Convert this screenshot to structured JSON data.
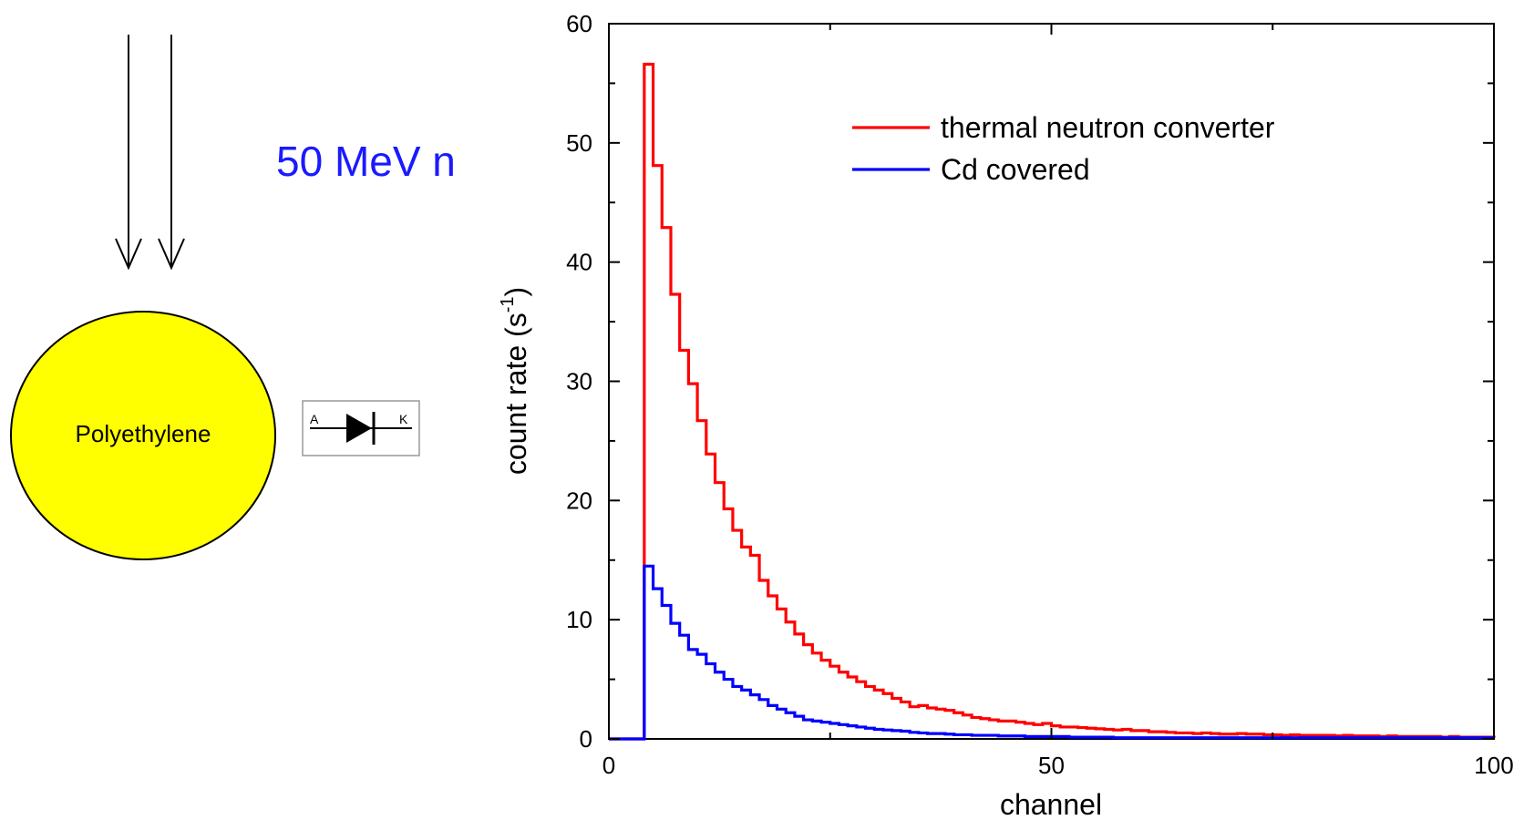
{
  "schematic": {
    "beam_label": "50 MeV n",
    "sphere_label": "Polyethylene",
    "diode_anode": "A",
    "diode_cathode": "K",
    "colors": {
      "sphere_fill": "#ffff00",
      "beam_label": "#1a1aff"
    },
    "icons": [
      "arrow-down-icon",
      "arrow-down-icon",
      "diode-icon"
    ]
  },
  "chart_data": {
    "type": "line",
    "step": true,
    "xlabel": "channel",
    "ylabel": "count rate (s",
    "ylabel_sup": "-1",
    "ylabel_close": ")",
    "xlim": [
      0,
      100
    ],
    "ylim": [
      0,
      60
    ],
    "xticks": [
      0,
      50,
      100
    ],
    "yticks": [
      0,
      10,
      20,
      30,
      40,
      50,
      60
    ],
    "legend_position": "top-right",
    "grid": false,
    "series": [
      {
        "name": "thermal neutron converter",
        "color": "#ff0000",
        "x": [
          0,
          1,
          2,
          3,
          4,
          5,
          6,
          7,
          8,
          9,
          10,
          11,
          12,
          13,
          14,
          15,
          16,
          17,
          18,
          19,
          20,
          21,
          22,
          23,
          24,
          25,
          26,
          27,
          28,
          29,
          30,
          31,
          32,
          33,
          34,
          35,
          36,
          37,
          38,
          39,
          40,
          41,
          42,
          43,
          44,
          45,
          46,
          47,
          48,
          49,
          50,
          51,
          52,
          53,
          54,
          55,
          56,
          57,
          58,
          59,
          60,
          61,
          62,
          63,
          64,
          65,
          66,
          67,
          68,
          69,
          70,
          71,
          72,
          73,
          74,
          75,
          76,
          77,
          78,
          79,
          80,
          81,
          82,
          83,
          84,
          85,
          86,
          87,
          88,
          89,
          90,
          91,
          92,
          93,
          94,
          95,
          96,
          97,
          98,
          99,
          100
        ],
        "y": [
          0,
          0,
          0,
          0,
          56.6,
          48.1,
          42.9,
          37.3,
          32.6,
          29.8,
          26.7,
          23.9,
          21.5,
          19.3,
          17.5,
          16.1,
          15.4,
          13.3,
          12.0,
          10.9,
          9.8,
          8.8,
          7.9,
          7.2,
          6.6,
          6.1,
          5.6,
          5.2,
          4.8,
          4.4,
          4.1,
          3.8,
          3.4,
          3.1,
          2.7,
          2.8,
          2.6,
          2.5,
          2.4,
          2.2,
          2.0,
          1.8,
          1.7,
          1.6,
          1.5,
          1.5,
          1.4,
          1.3,
          1.2,
          1.3,
          1.1,
          1.0,
          1.0,
          0.95,
          0.9,
          0.85,
          0.8,
          0.75,
          0.8,
          0.7,
          0.7,
          0.6,
          0.6,
          0.55,
          0.5,
          0.5,
          0.45,
          0.5,
          0.45,
          0.4,
          0.4,
          0.45,
          0.4,
          0.4,
          0.35,
          0.35,
          0.3,
          0.35,
          0.3,
          0.3,
          0.3,
          0.3,
          0.25,
          0.3,
          0.25,
          0.25,
          0.25,
          0.2,
          0.25,
          0.2,
          0.2,
          0.2,
          0.2,
          0.2,
          0.15,
          0.2,
          0.15,
          0.15,
          0.15,
          0.15,
          0.1
        ]
      },
      {
        "name": "Cd covered",
        "color": "#0000ff",
        "x": [
          0,
          1,
          2,
          3,
          4,
          5,
          6,
          7,
          8,
          9,
          10,
          11,
          12,
          13,
          14,
          15,
          16,
          17,
          18,
          19,
          20,
          21,
          22,
          23,
          24,
          25,
          26,
          27,
          28,
          29,
          30,
          31,
          32,
          33,
          34,
          35,
          36,
          37,
          38,
          39,
          40,
          41,
          42,
          43,
          44,
          45,
          46,
          47,
          48,
          49,
          50,
          51,
          52,
          53,
          54,
          55,
          56,
          57,
          58,
          59,
          60,
          61,
          62,
          63,
          64,
          65,
          66,
          67,
          68,
          69,
          70,
          71,
          72,
          73,
          74,
          75,
          76,
          77,
          78,
          79,
          80,
          81,
          82,
          83,
          84,
          85,
          86,
          87,
          88,
          89,
          90,
          91,
          92,
          93,
          94,
          95,
          96,
          97,
          98,
          99,
          100
        ],
        "y": [
          0,
          0,
          0,
          0,
          14.5,
          12.6,
          11.2,
          9.7,
          8.7,
          7.5,
          7.1,
          6.3,
          5.6,
          5.0,
          4.4,
          4.1,
          3.7,
          3.3,
          2.8,
          2.5,
          2.2,
          1.9,
          1.6,
          1.5,
          1.4,
          1.3,
          1.2,
          1.1,
          1.0,
          0.9,
          0.8,
          0.75,
          0.7,
          0.65,
          0.55,
          0.5,
          0.45,
          0.45,
          0.4,
          0.35,
          0.35,
          0.3,
          0.3,
          0.3,
          0.25,
          0.25,
          0.25,
          0.2,
          0.2,
          0.2,
          0.2,
          0.2,
          0.15,
          0.15,
          0.15,
          0.15,
          0.15,
          0.1,
          0.1,
          0.1,
          0.1,
          0.1,
          0.1,
          0.1,
          0.1,
          0.1,
          0.1,
          0.1,
          0.1,
          0.1,
          0.1,
          0.1,
          0.1,
          0.1,
          0.1,
          0.1,
          0.1,
          0.1,
          0.1,
          0.1,
          0.1,
          0.1,
          0.1,
          0.1,
          0.1,
          0.1,
          0.1,
          0.1,
          0.1,
          0.1,
          0.1,
          0.1,
          0.1,
          0.1,
          0.1,
          0.1,
          0.1,
          0.1,
          0.1,
          0.1,
          0.1
        ]
      }
    ]
  }
}
